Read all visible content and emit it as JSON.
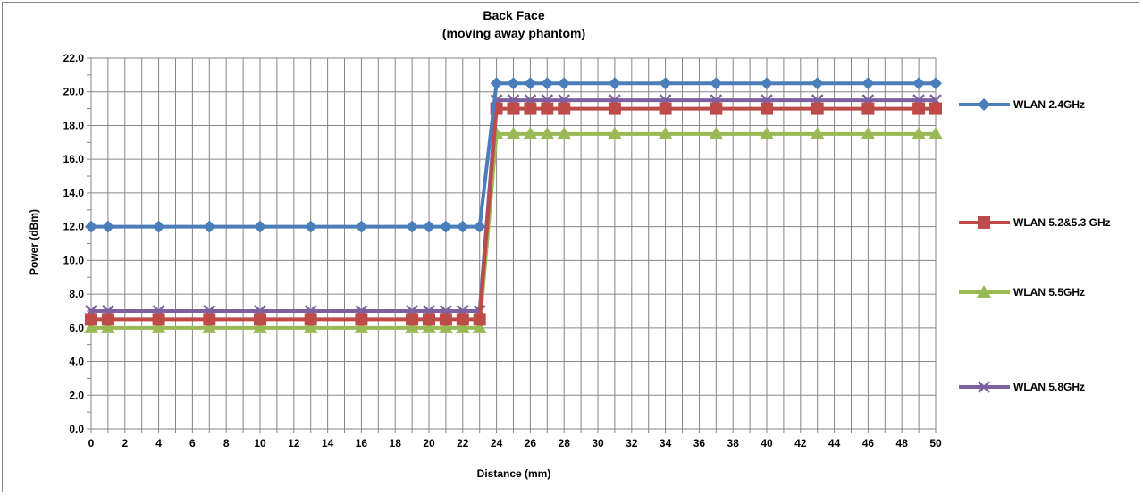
{
  "chart_data": {
    "type": "line",
    "title": "Back Face",
    "subtitle": "(moving away phantom)",
    "xlabel": "Distance (mm)",
    "ylabel": "Power (dBm)",
    "xlim": [
      0,
      50
    ],
    "ylim": [
      0,
      22
    ],
    "x_ticks": [
      0,
      2,
      4,
      6,
      8,
      10,
      12,
      14,
      16,
      18,
      20,
      22,
      24,
      26,
      28,
      30,
      32,
      34,
      36,
      38,
      40,
      42,
      44,
      46,
      48,
      50
    ],
    "y_ticks": [
      "0.0",
      "2.0",
      "4.0",
      "6.0",
      "8.0",
      "10.0",
      "12.0",
      "14.0",
      "16.0",
      "18.0",
      "20.0",
      "22.0"
    ],
    "grid": true,
    "legend_position": "right",
    "x": [
      0,
      1,
      4,
      7,
      10,
      13,
      16,
      19,
      20,
      21,
      22,
      23,
      24,
      25,
      26,
      27,
      28,
      31,
      34,
      37,
      40,
      43,
      46,
      49,
      50
    ],
    "series": [
      {
        "name": "WLAN 2.4GHz",
        "color": "#4a7ebb",
        "marker": "diamond",
        "values": [
          12,
          12,
          12,
          12,
          12,
          12,
          12,
          12,
          12,
          12,
          12,
          12,
          20.5,
          20.5,
          20.5,
          20.5,
          20.5,
          20.5,
          20.5,
          20.5,
          20.5,
          20.5,
          20.5,
          20.5,
          20.5
        ]
      },
      {
        "name": "WLAN 5.2&5.3 GHz",
        "color": "#be4b48",
        "marker": "square",
        "values": [
          6.5,
          6.5,
          6.5,
          6.5,
          6.5,
          6.5,
          6.5,
          6.5,
          6.5,
          6.5,
          6.5,
          6.5,
          19,
          19,
          19,
          19,
          19,
          19,
          19,
          19,
          19,
          19,
          19,
          19,
          19
        ]
      },
      {
        "name": "WLAN 5.5GHz",
        "color": "#98b954",
        "marker": "triangle",
        "values": [
          6,
          6,
          6,
          6,
          6,
          6,
          6,
          6,
          6,
          6,
          6,
          6,
          17.5,
          17.5,
          17.5,
          17.5,
          17.5,
          17.5,
          17.5,
          17.5,
          17.5,
          17.5,
          17.5,
          17.5,
          17.5
        ]
      },
      {
        "name": "WLAN 5.8GHz",
        "color": "#7d60a0",
        "marker": "x",
        "values": [
          7,
          7,
          7,
          7,
          7,
          7,
          7,
          7,
          7,
          7,
          7,
          7,
          19.5,
          19.5,
          19.5,
          19.5,
          19.5,
          19.5,
          19.5,
          19.5,
          19.5,
          19.5,
          19.5,
          19.5,
          19.5
        ]
      }
    ]
  }
}
